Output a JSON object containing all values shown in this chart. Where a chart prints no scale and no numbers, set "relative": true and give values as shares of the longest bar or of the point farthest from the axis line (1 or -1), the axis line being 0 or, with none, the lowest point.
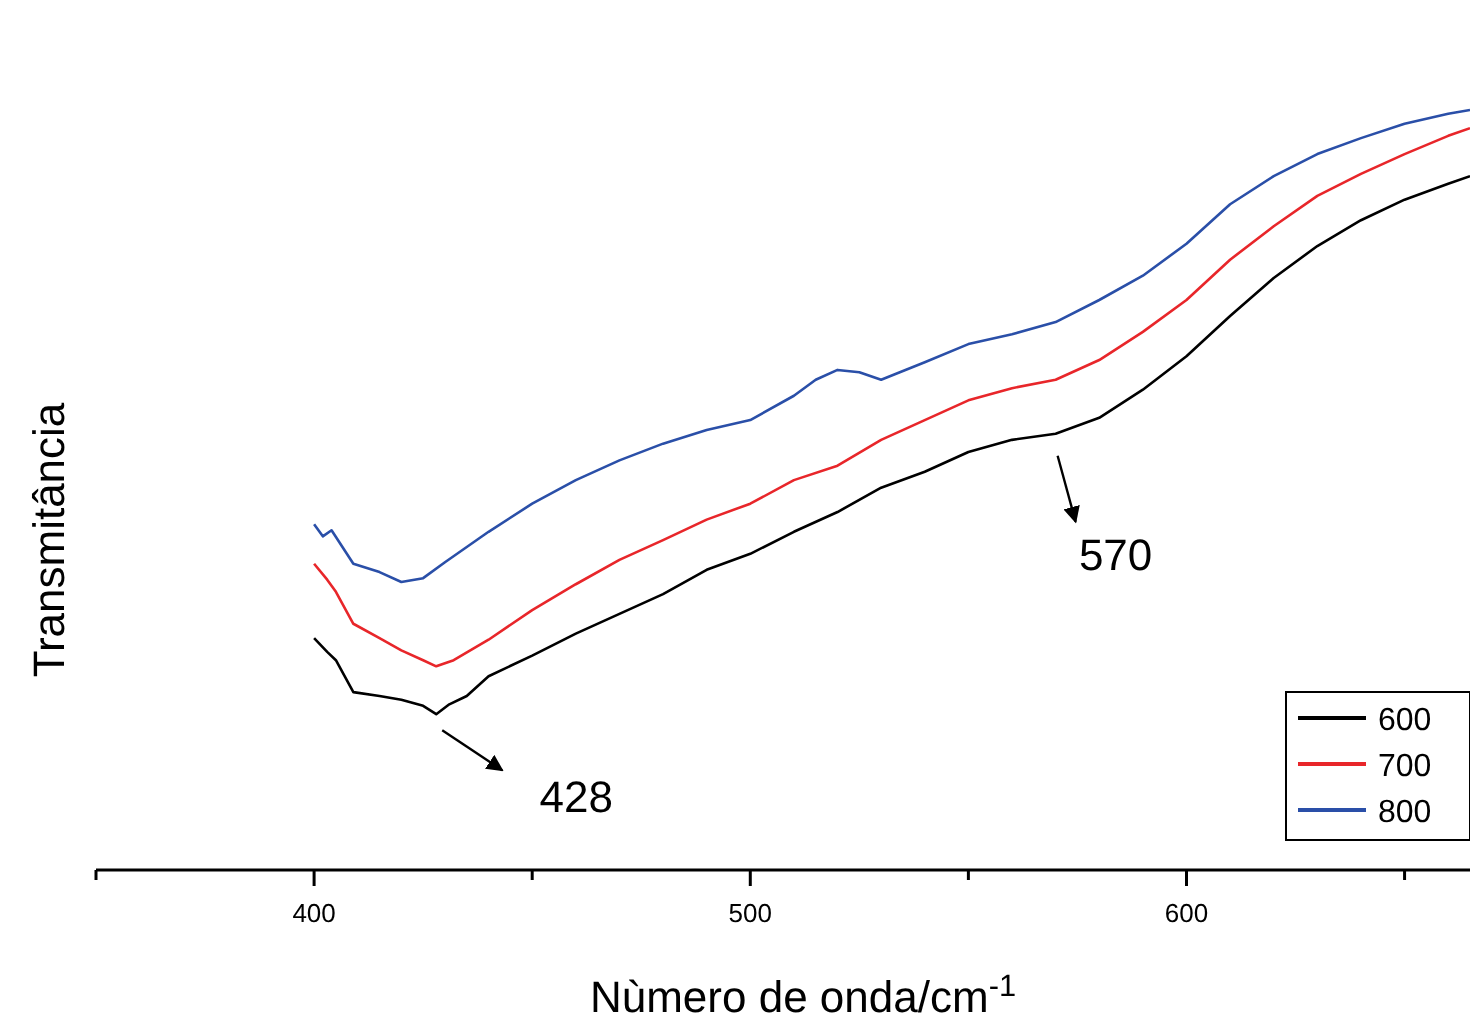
{
  "chart_data": {
    "type": "line",
    "relative": true,
    "xlabel": "Nùmero de onda/cm$^{-1}$",
    "ylabel": "Transmitância",
    "xlim": [
      350,
      665
    ],
    "xticks": [
      {
        "value": 350,
        "label": null
      },
      400,
      {
        "value": 450,
        "label": null
      },
      500,
      {
        "value": 550,
        "label": null
      },
      600,
      {
        "value": 650,
        "label": null
      }
    ],
    "legend": "bottom right",
    "grid": false,
    "marker": "none",
    "line_style": "solid",
    "annotations": [
      {
        "text": "428",
        "x": 428,
        "y": 0.205
      },
      {
        "text": "570",
        "x": 570,
        "y": 0.574
      }
    ],
    "series": [
      {
        "name": "600",
        "color": "#000000",
        "x": [
          400,
          403,
          405,
          409,
          415,
          420,
          425,
          428,
          431,
          435,
          440,
          450,
          460,
          470,
          480,
          490,
          500,
          510,
          520,
          530,
          540,
          550,
          560,
          570,
          580,
          590,
          600,
          610,
          620,
          630,
          640,
          650,
          660,
          665
        ],
        "values": [
          0.305,
          0.287,
          0.276,
          0.234,
          0.229,
          0.224,
          0.216,
          0.205,
          0.218,
          0.229,
          0.255,
          0.282,
          0.311,
          0.337,
          0.363,
          0.395,
          0.416,
          0.445,
          0.471,
          0.503,
          0.524,
          0.55,
          0.566,
          0.574,
          0.595,
          0.632,
          0.676,
          0.729,
          0.779,
          0.821,
          0.855,
          0.882,
          0.903,
          0.913
        ]
      },
      {
        "name": "700",
        "color": "#e8262a",
        "x": [
          400,
          403,
          405,
          409,
          415,
          420,
          425,
          428,
          432,
          440,
          450,
          460,
          470,
          480,
          490,
          500,
          510,
          520,
          530,
          540,
          550,
          560,
          570,
          580,
          590,
          600,
          610,
          620,
          630,
          640,
          650,
          660,
          665
        ],
        "values": [
          0.403,
          0.382,
          0.366,
          0.324,
          0.305,
          0.289,
          0.276,
          0.268,
          0.276,
          0.303,
          0.342,
          0.376,
          0.408,
          0.434,
          0.461,
          0.482,
          0.513,
          0.532,
          0.566,
          0.592,
          0.618,
          0.634,
          0.645,
          0.671,
          0.708,
          0.75,
          0.803,
          0.847,
          0.887,
          0.916,
          0.942,
          0.966,
          0.976
        ]
      },
      {
        "name": "800",
        "color": "#2a4fa8",
        "x": [
          400,
          402,
          404,
          409,
          415,
          420,
          425,
          430,
          440,
          450,
          460,
          470,
          480,
          490,
          500,
          510,
          515,
          520,
          525,
          530,
          540,
          550,
          560,
          570,
          580,
          590,
          600,
          610,
          620,
          630,
          640,
          650,
          660,
          665
        ],
        "values": [
          0.455,
          0.439,
          0.447,
          0.403,
          0.392,
          0.379,
          0.384,
          0.405,
          0.445,
          0.482,
          0.513,
          0.539,
          0.561,
          0.579,
          0.592,
          0.624,
          0.645,
          0.658,
          0.655,
          0.645,
          0.668,
          0.692,
          0.705,
          0.721,
          0.75,
          0.782,
          0.824,
          0.876,
          0.913,
          0.942,
          0.963,
          0.982,
          0.995,
          1.0
        ]
      }
    ]
  }
}
